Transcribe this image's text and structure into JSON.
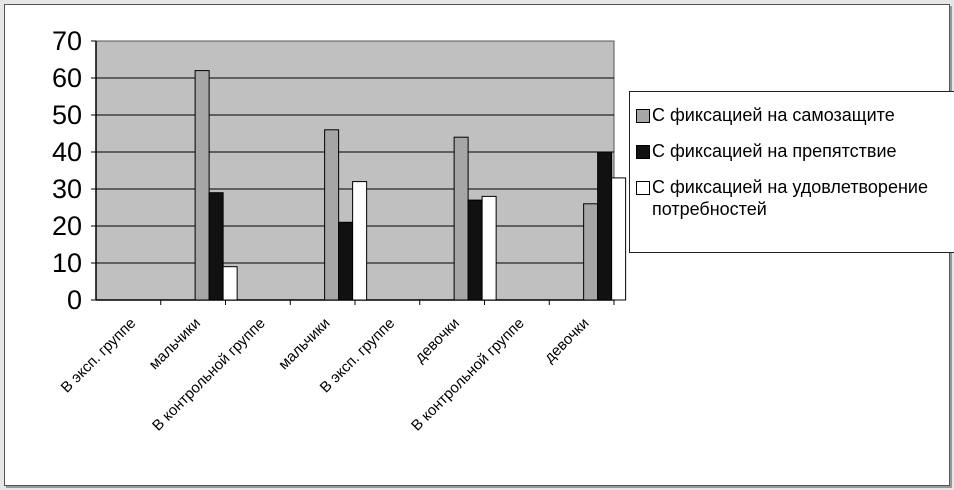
{
  "chart_data": {
    "type": "bar",
    "categories": [
      "В эксп. группе",
      "мальчики",
      "В контрольной группе",
      "мальчики",
      "В эксп. группе",
      "девочки",
      "В контрольной группе",
      "девочки"
    ],
    "series": [
      {
        "name": "С фиксацией на самозащите",
        "color": "#a6a6a6",
        "values": [
          null,
          62,
          null,
          46,
          null,
          44,
          null,
          26
        ]
      },
      {
        "name": "С фиксацией на препятствие",
        "color": "#111111",
        "values": [
          null,
          29,
          null,
          21,
          null,
          27,
          null,
          40
        ]
      },
      {
        "name": "С фиксацией на удовлетворение потребностей",
        "color": "#ffffff",
        "values": [
          null,
          9,
          null,
          32,
          null,
          28,
          null,
          33
        ]
      }
    ],
    "ylim": [
      0,
      70
    ],
    "yticks": [
      0,
      10,
      20,
      30,
      40,
      50,
      60,
      70
    ],
    "grid": true,
    "legend": "right",
    "plot_background": "#c0c0c0"
  }
}
